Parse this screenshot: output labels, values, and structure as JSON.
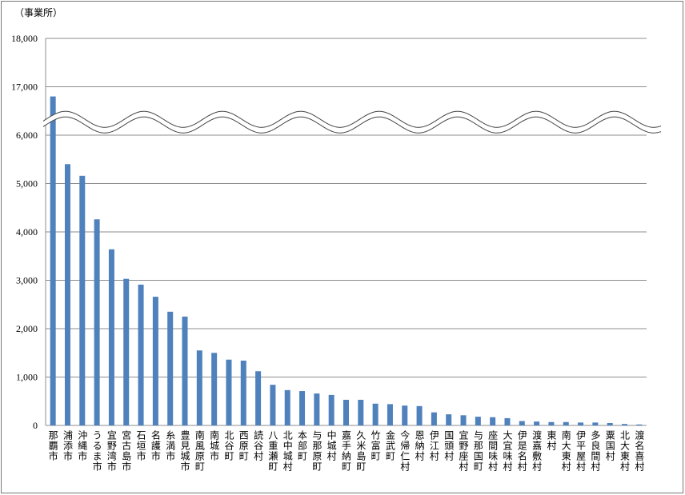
{
  "chart_data": {
    "type": "bar",
    "y_axis_label": "（事業所）",
    "categories": [
      "那覇市",
      "浦添市",
      "沖縄市",
      "うるま市",
      "宜野湾市",
      "宮古島市",
      "石垣市",
      "名護市",
      "糸満市",
      "豊見城市",
      "南風原町",
      "南城市",
      "北谷町",
      "西原町",
      "読谷村",
      "八重瀬町",
      "北中城村",
      "本部町",
      "与那原町",
      "中城村",
      "嘉手納町",
      "久米島町",
      "竹富町",
      "金武町",
      "今帰仁村",
      "恩納村",
      "伊江村",
      "国頭村",
      "宜野座村",
      "与那国町",
      "座間味村",
      "大宜味村",
      "伊是名村",
      "渡嘉敷村",
      "東村",
      "南大東村",
      "伊平屋村",
      "多良間村",
      "粟国村",
      "北大東村",
      "渡名喜村"
    ],
    "values": [
      16800,
      5400,
      5160,
      4260,
      3640,
      3030,
      2910,
      2660,
      2350,
      2250,
      1550,
      1500,
      1360,
      1340,
      1120,
      840,
      730,
      710,
      660,
      630,
      530,
      530,
      450,
      440,
      410,
      400,
      270,
      230,
      210,
      180,
      170,
      150,
      90,
      80,
      70,
      70,
      60,
      60,
      50,
      30,
      20
    ],
    "color": "#4f81bd",
    "ylim": [
      0,
      18000
    ],
    "axis_break": [
      6000,
      17000
    ],
    "yticks": [
      0,
      {
        "value": 1000,
        "label": "1,000"
      },
      {
        "value": 2000,
        "label": "2,000"
      },
      {
        "value": 3000,
        "label": "3,000"
      },
      {
        "value": 4000,
        "label": "4,000"
      },
      {
        "value": 5000,
        "label": "5,000"
      },
      {
        "value": 6000,
        "label": "6,000"
      },
      {
        "value": 17000,
        "label": "17,000"
      },
      {
        "value": 18000,
        "label": "18,000"
      }
    ],
    "grid": true
  }
}
